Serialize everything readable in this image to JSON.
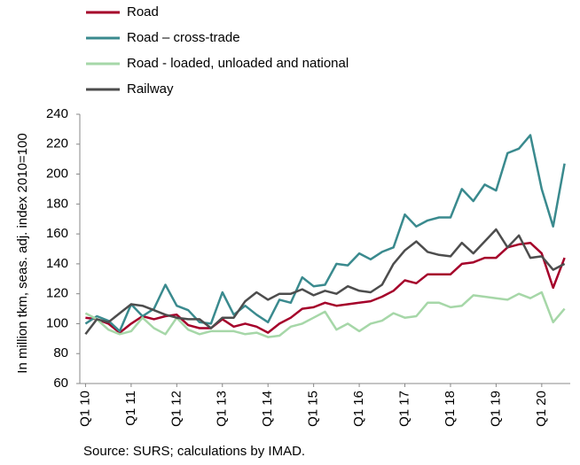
{
  "chart_data": {
    "type": "line",
    "y_label": "In million tkm, seas. adj. index 2010=100",
    "source": "Source: SURS; calculations by IMAD.",
    "categories": [
      "Q1 10",
      null,
      null,
      null,
      "Q1 11",
      null,
      null,
      null,
      "Q1 12",
      null,
      null,
      null,
      "Q1 13",
      null,
      null,
      null,
      "Q1 14",
      null,
      null,
      null,
      "Q1 15",
      null,
      null,
      null,
      "Q1 16",
      null,
      null,
      null,
      "Q1 17",
      null,
      null,
      null,
      "Q1 18",
      null,
      null,
      null,
      "Q1 19",
      null,
      null,
      null,
      "Q1 20",
      null,
      null
    ],
    "series": [
      {
        "name": "Road",
        "color": "#a5002a",
        "values": [
          104,
          103,
          100,
          94,
          100,
          105,
          103,
          105,
          106,
          99,
          97,
          97,
          103,
          98,
          100,
          98,
          94,
          100,
          104,
          110,
          111,
          114,
          112,
          113,
          114,
          115,
          118,
          122,
          129,
          127,
          133,
          133,
          133,
          140,
          141,
          144,
          144,
          151,
          153,
          154,
          147,
          124,
          144
        ]
      },
      {
        "name": "Road – cross-trade",
        "color": "#3a8a8e",
        "values": [
          100,
          105,
          102,
          95,
          113,
          105,
          110,
          126,
          112,
          109,
          101,
          100,
          121,
          106,
          112,
          106,
          101,
          116,
          114,
          131,
          125,
          126,
          140,
          139,
          147,
          143,
          148,
          151,
          173,
          165,
          169,
          171,
          171,
          190,
          182,
          193,
          189,
          214,
          217,
          226,
          190,
          165,
          207
        ]
      },
      {
        "name": "Road - loaded, unloaded and national",
        "color": "#a6d7a8",
        "values": [
          107,
          103,
          96,
          93,
          95,
          104,
          97,
          93,
          104,
          96,
          93,
          95,
          95,
          95,
          93,
          94,
          91,
          92,
          98,
          100,
          104,
          108,
          96,
          100,
          95,
          100,
          102,
          107,
          104,
          105,
          114,
          114,
          111,
          112,
          119,
          118,
          117,
          116,
          120,
          117,
          121,
          101,
          110
        ]
      },
      {
        "name": "Railway",
        "color": "#4d4d4d",
        "values": [
          93,
          103,
          101,
          107,
          113,
          112,
          109,
          106,
          104,
          103,
          103,
          97,
          104,
          104,
          115,
          121,
          116,
          120,
          120,
          123,
          119,
          122,
          120,
          125,
          122,
          121,
          126,
          140,
          149,
          155,
          148,
          146,
          145,
          154,
          147,
          155,
          163,
          151,
          159,
          144,
          145,
          136,
          140
        ]
      }
    ],
    "ylim": [
      60,
      240
    ],
    "yticks": [
      60,
      80,
      100,
      120,
      140,
      160,
      180,
      200,
      220,
      240
    ],
    "grid": false
  }
}
